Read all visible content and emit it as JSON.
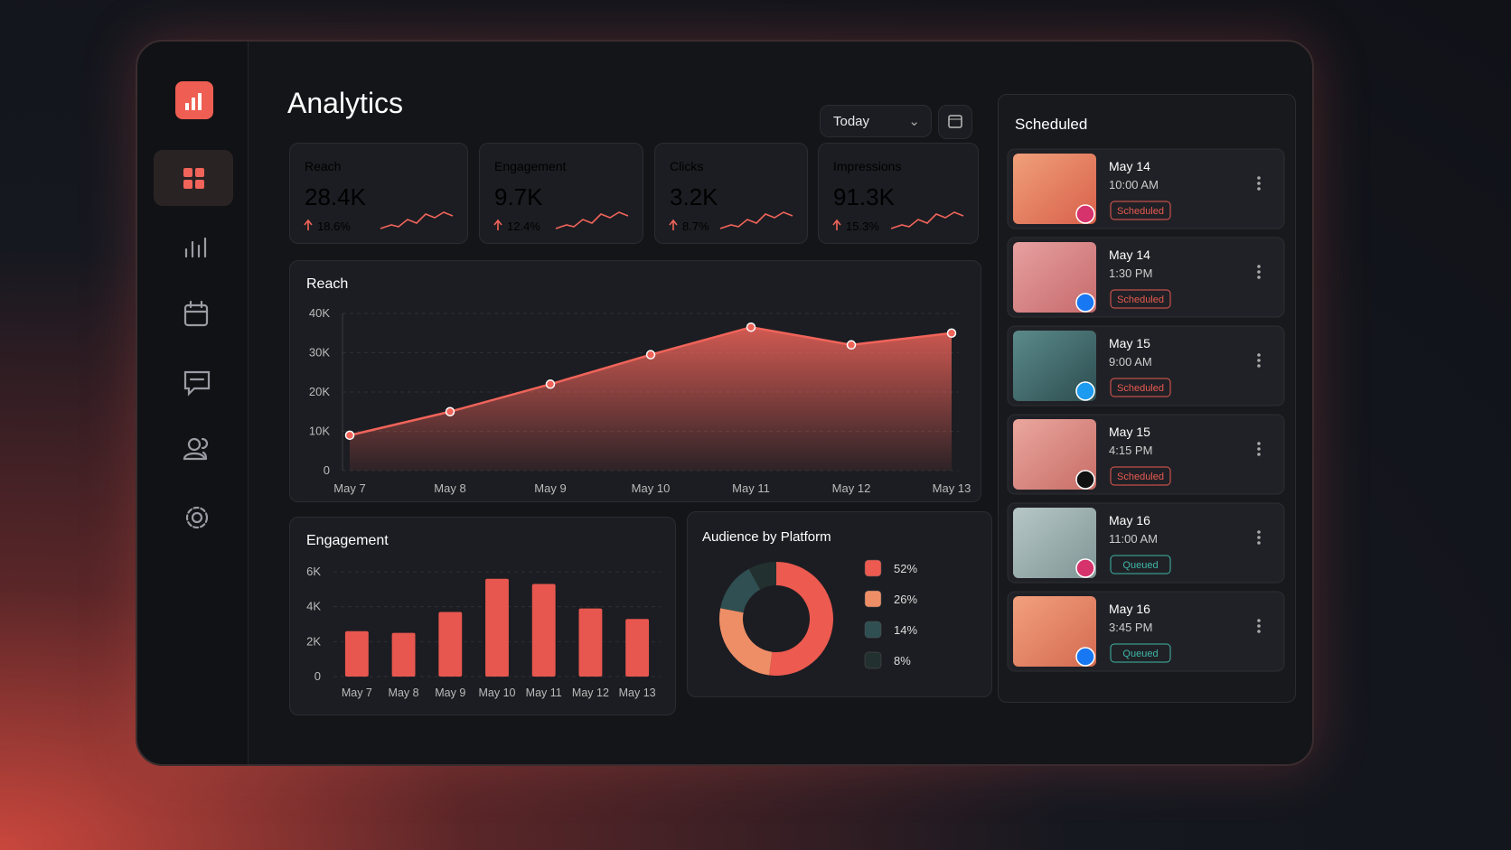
{
  "header": {
    "title": "Analytics",
    "range": "Today"
  },
  "kpis": [
    {
      "label": "Reach",
      "value": "28.4K",
      "change": "18.6%"
    },
    {
      "label": "Engagement",
      "value": "9.7K",
      "change": "12.4%"
    },
    {
      "label": "Clicks",
      "value": "3.2K",
      "change": "8.7%"
    },
    {
      "label": "Impressions",
      "value": "91.3K",
      "change": "15.3%"
    }
  ],
  "reach_chart": {
    "type": "area",
    "title": "Reach",
    "categories": [
      "May 7",
      "May 8",
      "May 9",
      "May 10",
      "May 11",
      "May 12",
      "May 13"
    ],
    "values": [
      9000,
      15000,
      22000,
      29500,
      36500,
      32000,
      35000
    ],
    "color": "#f0645a",
    "ylim": [
      0,
      40000
    ],
    "yticks": [
      0,
      {
        "value": 10000,
        "label": "10K"
      },
      {
        "value": 20000,
        "label": "20K"
      },
      {
        "value": 30000,
        "label": "30K"
      },
      {
        "value": 40000,
        "label": "40K"
      }
    ],
    "grid": true
  },
  "engagement_chart": {
    "type": "bar",
    "title": "Engagement",
    "categories": [
      "May 7",
      "May 8",
      "May 9",
      "May 10",
      "May 11",
      "May 12",
      "May 13"
    ],
    "values": [
      2600,
      2500,
      3700,
      5600,
      5300,
      3900,
      3300
    ],
    "color": "#e8574f",
    "ylim": [
      0,
      6000
    ],
    "yticks": [
      0,
      {
        "value": 2000,
        "label": "2K"
      },
      {
        "value": 4000,
        "label": "4K"
      },
      {
        "value": 6000,
        "label": "6K"
      }
    ],
    "grid": true
  },
  "audience_chart": {
    "type": "donut",
    "title": "Audience by Platform",
    "values": [
      52,
      26,
      14,
      8
    ],
    "value_labels": [
      "52%",
      "26%",
      "14%",
      "8%"
    ],
    "colors": [
      "#ec5a50",
      "#ee8e66",
      "#2f4f52",
      "#22302f"
    ]
  },
  "scheduled": {
    "title": "Scheduled",
    "items": [
      {
        "date": "May 14",
        "time": "10:00 AM",
        "status": "Scheduled"
      },
      {
        "date": "May 14",
        "time": "1:30 PM",
        "status": "Scheduled"
      },
      {
        "date": "May 15",
        "time": "9:00 AM",
        "status": "Scheduled"
      },
      {
        "date": "May 15",
        "time": "4:15 PM",
        "status": "Scheduled"
      },
      {
        "date": "May 16",
        "time": "11:00 AM",
        "status": "Queued"
      },
      {
        "date": "May 16",
        "time": "3:45 PM",
        "status": "Queued"
      }
    ]
  }
}
